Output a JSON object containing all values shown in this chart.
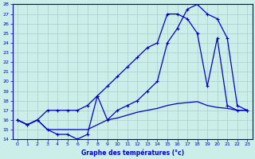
{
  "title": "Graphe des températures (°c)",
  "background_color": "#cceee8",
  "plot_bg_color": "#cceee8",
  "grid_color": "#aacccc",
  "line_color": "#0000cc",
  "xlim": [
    -0.5,
    23.5
  ],
  "ylim": [
    14,
    28
  ],
  "xtick_labels": [
    "0",
    "1",
    "2",
    "3",
    "4",
    "5",
    "6",
    "7",
    "8",
    "9",
    "10",
    "11",
    "12",
    "13",
    "14",
    "15",
    "16",
    "17",
    "18",
    "19",
    "20",
    "21",
    "22",
    "23"
  ],
  "ytick_labels": [
    "14",
    "15",
    "16",
    "17",
    "18",
    "19",
    "20",
    "21",
    "22",
    "23",
    "24",
    "25",
    "26",
    "27",
    "28"
  ],
  "series1_x": [
    0,
    1,
    2,
    3,
    4,
    5,
    6,
    7,
    8,
    9,
    10,
    11,
    12,
    13,
    14,
    15,
    16,
    17,
    18,
    19,
    20,
    21,
    22,
    23
  ],
  "series1_y": [
    16.0,
    15.5,
    16.0,
    15.0,
    14.5,
    14.5,
    14.0,
    14.5,
    18.5,
    16.0,
    17.0,
    17.5,
    18.0,
    19.0,
    20.0,
    24.0,
    25.5,
    27.5,
    28.0,
    27.0,
    26.5,
    24.5,
    17.5,
    17.0
  ],
  "series2_x": [
    0,
    1,
    2,
    3,
    4,
    5,
    6,
    7,
    8,
    9,
    10,
    11,
    12,
    13,
    14,
    15,
    16,
    17,
    18,
    19,
    20,
    21,
    22,
    23
  ],
  "series2_y": [
    16.0,
    15.5,
    16.0,
    17.0,
    17.0,
    17.0,
    17.0,
    17.5,
    18.5,
    19.5,
    20.5,
    21.5,
    22.5,
    23.5,
    24.0,
    27.0,
    27.0,
    26.5,
    25.0,
    19.5,
    24.5,
    17.5,
    17.0,
    17.0
  ],
  "series3_x": [
    0,
    1,
    2,
    3,
    4,
    5,
    6,
    7,
    8,
    9,
    10,
    11,
    12,
    13,
    14,
    15,
    16,
    17,
    18,
    19,
    20,
    21,
    22,
    23
  ],
  "series3_y": [
    16.0,
    15.5,
    16.0,
    15.0,
    15.0,
    15.0,
    15.0,
    15.0,
    15.5,
    16.0,
    16.2,
    16.5,
    16.8,
    17.0,
    17.2,
    17.5,
    17.7,
    17.8,
    17.9,
    17.5,
    17.3,
    17.2,
    17.0,
    17.0
  ]
}
